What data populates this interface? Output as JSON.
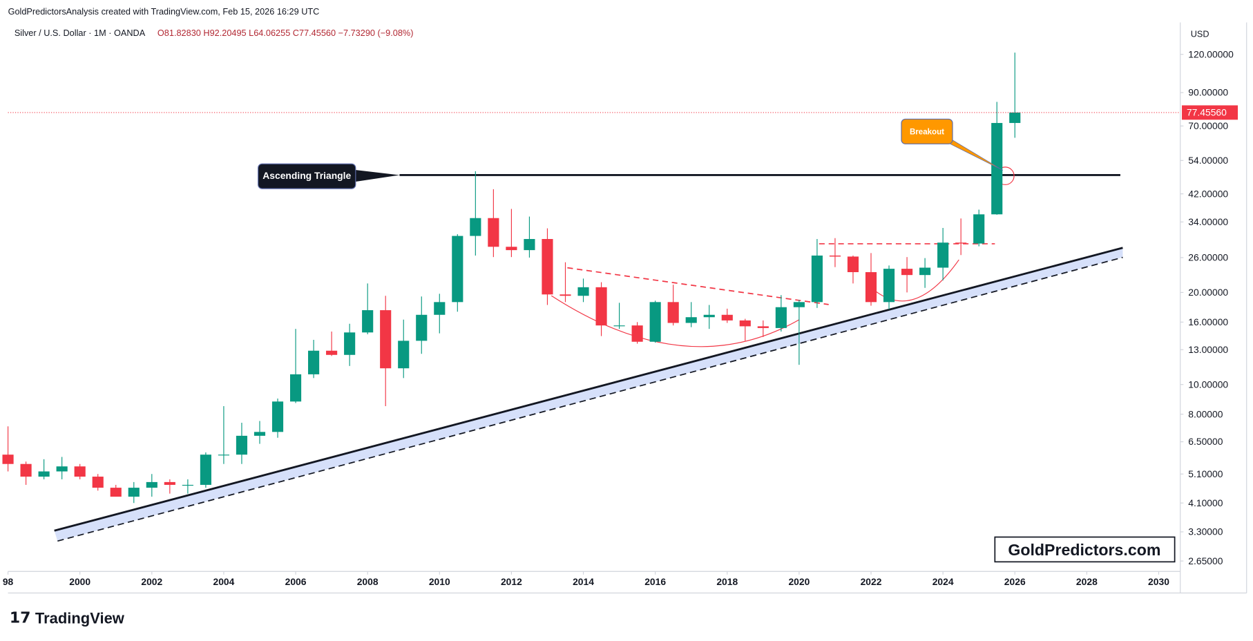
{
  "header": "GoldPredictorsAnalysis created with TradingView.com, Feb 15, 2026 16:29 UTC",
  "chart_data": {
    "type": "candlestick",
    "title": "Silver / U.S. Dollar · 1M · OANDA",
    "ohlc_text": "O81.82830 H92.20495 L64.06255 C77.45560 −7.73290 (−9.08%)",
    "currency": "USD",
    "log_scale": true,
    "grid": false,
    "up_color": "#089981",
    "down_color": "#f23645",
    "x": [
      1998,
      1998.5,
      1999,
      1999.5,
      2000,
      2000.5,
      2001,
      2001.5,
      2002,
      2002.5,
      2003,
      2003.5,
      2004,
      2004.5,
      2005,
      2005.5,
      2006,
      2006.5,
      2007,
      2007.5,
      2008,
      2008.5,
      2009,
      2009.5,
      2010,
      2010.5,
      2011,
      2011.5,
      2012,
      2012.5,
      2013,
      2013.5,
      2014,
      2014.5,
      2015,
      2015.5,
      2016,
      2016.5,
      2017,
      2017.5,
      2018,
      2018.5,
      2019,
      2019.5,
      2020,
      2020.5,
      2021,
      2021.5,
      2022,
      2022.5,
      2023,
      2023.5,
      2024,
      2024.5,
      2025,
      2025.5,
      2026
    ],
    "open": [
      5.9,
      5.5,
      5.0,
      5.2,
      5.4,
      5.0,
      4.6,
      4.3,
      4.6,
      4.8,
      4.7,
      4.7,
      5.9,
      5.9,
      6.8,
      7.0,
      8.8,
      10.8,
      12.9,
      12.5,
      14.8,
      17.5,
      11.3,
      13.9,
      16.9,
      18.6,
      30.6,
      35.0,
      28.2,
      27.5,
      29.9,
      19.7,
      19.5,
      20.8,
      15.6,
      15.6,
      13.8,
      18.6,
      15.9,
      16.6,
      16.9,
      16.2,
      15.5,
      15.3,
      17.9,
      18.6,
      26.4,
      26.2,
      23.3,
      18.6,
      23.9,
      22.8,
      24.1,
      29.1,
      28.9,
      36.0,
      71.6
    ],
    "high": [
      7.3,
      5.6,
      5.7,
      5.8,
      5.5,
      5.1,
      4.7,
      4.8,
      5.1,
      4.9,
      4.9,
      6.0,
      8.5,
      7.5,
      7.6,
      9.0,
      15.2,
      14.0,
      14.9,
      15.8,
      21.4,
      19.5,
      16.3,
      19.4,
      19.8,
      31.0,
      49.8,
      43.5,
      37.5,
      35.4,
      32.4,
      25.1,
      22.2,
      21.6,
      18.5,
      16.0,
      18.8,
      21.2,
      18.6,
      18.2,
      17.7,
      16.4,
      16.2,
      19.6,
      18.9,
      29.9,
      30.1,
      26.4,
      26.9,
      24.5,
      26.1,
      25.9,
      32.5,
      34.9,
      37.3,
      83.9,
      121.6
    ],
    "low": [
      5.2,
      4.7,
      4.9,
      4.9,
      4.9,
      4.5,
      4.3,
      4.1,
      4.3,
      4.4,
      4.4,
      4.6,
      5.5,
      5.5,
      6.4,
      6.7,
      8.7,
      10.5,
      12.4,
      11.5,
      14.6,
      8.5,
      10.5,
      12.6,
      14.7,
      17.3,
      26.4,
      26.1,
      26.1,
      26.0,
      18.2,
      18.6,
      18.6,
      14.4,
      15.2,
      13.6,
      13.7,
      15.6,
      15.4,
      15.2,
      15.9,
      13.9,
      14.3,
      14.9,
      11.6,
      17.8,
      24.2,
      21.4,
      18.1,
      17.6,
      20.0,
      20.7,
      21.9,
      26.5,
      28.3,
      35.9,
      64.06255
    ],
    "close": [
      5.5,
      5.0,
      5.2,
      5.4,
      5.0,
      4.6,
      4.3,
      4.6,
      4.8,
      4.7,
      4.7,
      5.9,
      5.9,
      6.8,
      7.0,
      8.8,
      10.8,
      12.9,
      12.5,
      14.8,
      17.5,
      11.3,
      13.9,
      16.9,
      18.6,
      30.6,
      35.0,
      28.2,
      27.5,
      29.9,
      19.7,
      19.5,
      20.8,
      15.6,
      15.6,
      13.8,
      18.6,
      15.9,
      16.6,
      16.9,
      16.2,
      15.5,
      15.3,
      17.9,
      18.6,
      26.4,
      26.2,
      23.3,
      18.6,
      23.9,
      22.8,
      24.1,
      29.1,
      28.9,
      36.0,
      71.6,
      77.4556
    ],
    "last_price": {
      "value": 77.4556,
      "label": "77.45560"
    },
    "xlim": [
      1998,
      2030.6
    ],
    "xticks": [
      {
        "value": 1998,
        "label": "98"
      },
      2000,
      2002,
      2004,
      2006,
      2008,
      2010,
      2012,
      2014,
      2016,
      2018,
      2020,
      2022,
      2024,
      2026,
      2028,
      2030
    ],
    "ylim": [
      2.45,
      152.6
    ],
    "yticks": [
      {
        "value": 2.65,
        "label": "2.65000"
      },
      {
        "value": 3.3,
        "label": "3.30000"
      },
      {
        "value": 4.1,
        "label": "4.10000"
      },
      {
        "value": 5.1,
        "label": "5.10000"
      },
      {
        "value": 6.5,
        "label": "6.50000"
      },
      {
        "value": 8,
        "label": "8.00000"
      },
      {
        "value": 10,
        "label": "10.00000"
      },
      {
        "value": 13,
        "label": "13.00000"
      },
      {
        "value": 16,
        "label": "16.00000"
      },
      {
        "value": 20,
        "label": "20.00000"
      },
      {
        "value": 26,
        "label": "26.00000"
      },
      {
        "value": 34,
        "label": "34.00000"
      },
      {
        "value": 42,
        "label": "42.00000"
      },
      {
        "value": 54,
        "label": "54.00000"
      },
      {
        "value": 70,
        "label": "70.00000"
      },
      {
        "value": 90,
        "label": "90.00000"
      },
      {
        "value": 120,
        "label": "120.00000"
      }
    ],
    "annotations": {
      "triangle": "Ascending Triangle",
      "breakout": "Breakout",
      "watermark": "GoldPredictors.com"
    }
  },
  "footer": "TradingView"
}
